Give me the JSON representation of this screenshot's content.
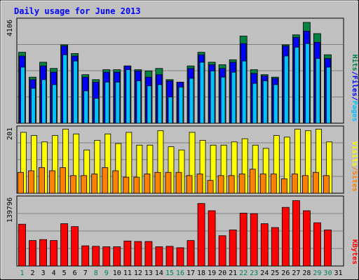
{
  "chart_data": [
    {
      "type": "bar",
      "panel": "hits-files-pages",
      "title": "Daily usage for June 2013",
      "ymax_label": "4106",
      "ylim": [
        0,
        4106
      ],
      "legend": [
        {
          "name": "Pages",
          "color": "#00c0ff"
        },
        {
          "name": "Files",
          "color": "#0000ff"
        },
        {
          "name": "Hits",
          "color": "#008040"
        }
      ],
      "separators": [
        "/",
        "/"
      ],
      "separator_color": "#0000ff",
      "categories": [
        "1",
        "2",
        "3",
        "4",
        "5",
        "6",
        "7",
        "8",
        "9",
        "10",
        "11",
        "12",
        "13",
        "14",
        "15",
        "16",
        "17",
        "18",
        "19",
        "20",
        "21",
        "22",
        "23",
        "24",
        "25",
        "26",
        "27",
        "28",
        "29",
        "30",
        "31"
      ],
      "series": [
        {
          "name": "Hits",
          "values": [
            2850,
            1850,
            2450,
            2200,
            3150,
            2800,
            1950,
            1750,
            2150,
            2150,
            2300,
            2150,
            2100,
            2200,
            1750,
            1650,
            2300,
            2850,
            2450,
            2350,
            2550,
            3500,
            2150,
            1950,
            1850,
            3150,
            3550,
            4050,
            3600,
            2750,
            0
          ]
        },
        {
          "name": "Files",
          "values": [
            2700,
            1750,
            2300,
            2050,
            3100,
            2700,
            1850,
            1650,
            2050,
            2050,
            2300,
            2100,
            1850,
            1950,
            1700,
            1650,
            2200,
            2750,
            2350,
            2200,
            2450,
            3200,
            2000,
            1900,
            1800,
            3100,
            3450,
            3700,
            3250,
            2600,
            0
          ]
        },
        {
          "name": "Pages",
          "values": [
            2250,
            1400,
            1750,
            1550,
            2750,
            2500,
            1300,
            1000,
            1650,
            1650,
            2150,
            1700,
            1500,
            1550,
            1050,
            1450,
            1800,
            2450,
            2100,
            1850,
            2050,
            2500,
            1600,
            1700,
            1550,
            2700,
            3050,
            3200,
            2600,
            2250,
            0
          ]
        }
      ]
    },
    {
      "type": "bar",
      "panel": "visits-sites",
      "ymax_label": "201",
      "ylim": [
        0,
        201
      ],
      "legend": [
        {
          "name": "Sites",
          "color": "#ff8000"
        },
        {
          "name": "Visits",
          "color": "#ffff00"
        }
      ],
      "separators": [
        "/"
      ],
      "separator_color": "#ff8000",
      "series": [
        {
          "name": "Visits",
          "values": [
            190,
            180,
            160,
            180,
            200,
            185,
            135,
            165,
            185,
            155,
            190,
            150,
            150,
            195,
            145,
            135,
            190,
            165,
            150,
            150,
            160,
            170,
            150,
            140,
            180,
            175,
            200,
            195,
            200,
            160,
            0
          ]
        },
        {
          "name": "Sites",
          "values": [
            65,
            70,
            80,
            70,
            80,
            55,
            55,
            60,
            80,
            70,
            50,
            50,
            60,
            65,
            65,
            65,
            55,
            60,
            40,
            55,
            55,
            60,
            75,
            60,
            60,
            45,
            60,
            55,
            65,
            55,
            0
          ]
        }
      ]
    },
    {
      "type": "bar",
      "panel": "kbytes",
      "ymax_label": "139796",
      "ylim": [
        0,
        139796
      ],
      "legend": [
        {
          "name": "KBytes",
          "color": "#ff0000"
        }
      ],
      "series": [
        {
          "name": "KBytes",
          "values": [
            87000,
            53000,
            55000,
            53000,
            88000,
            82000,
            42000,
            41000,
            40000,
            40000,
            52000,
            51000,
            51000,
            40000,
            41000,
            38000,
            53000,
            130000,
            115000,
            63000,
            75000,
            110000,
            109000,
            88000,
            80000,
            122000,
            136000,
            115000,
            90000,
            75000,
            0
          ]
        }
      ]
    }
  ],
  "weekend_days": [
    1,
    8,
    9,
    15,
    16,
    22,
    23,
    29,
    30
  ],
  "weekday_color": "#000000",
  "weekend_color": "#00805c"
}
